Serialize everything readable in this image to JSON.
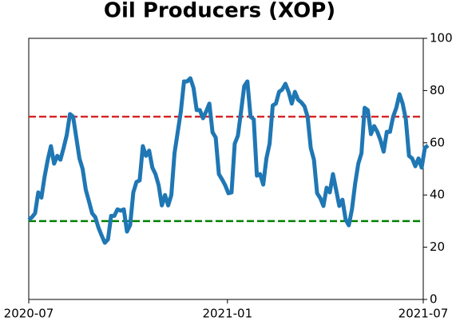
{
  "chart_data": {
    "type": "line",
    "title": "Oil Producers (XOP)",
    "series": [
      {
        "name": "XOP",
        "color": "#1f77b4",
        "values": [
          30.5,
          31.5,
          33,
          41,
          39,
          47,
          53.5,
          58.7,
          52,
          55,
          53.5,
          58,
          63,
          71,
          70,
          62,
          54,
          50,
          42,
          37.6,
          33,
          31.5,
          27.5,
          24.5,
          21.7,
          23,
          32,
          32,
          34.5,
          34,
          34.5,
          26,
          28.5,
          41,
          45,
          45.6,
          58.7,
          55,
          57,
          50.5,
          48,
          43.7,
          36,
          40,
          36,
          40,
          56,
          64,
          72,
          83.5,
          83.5,
          84.7,
          81,
          72.5,
          72.5,
          69.4,
          72,
          75,
          64,
          62,
          48,
          46,
          43.7,
          40.7,
          41,
          59.6,
          62.7,
          72,
          81.7,
          83.5,
          70,
          69,
          47.4,
          48,
          44,
          54,
          59.6,
          74.3,
          75,
          79.5,
          80.4,
          82.6,
          79.5,
          75,
          79.5,
          76.5,
          75.5,
          74,
          70,
          58,
          53.5,
          40.7,
          38.8,
          35.8,
          42.8,
          41,
          48,
          42,
          35.8,
          38.2,
          30.6,
          28.4,
          34.5,
          44.3,
          52,
          56,
          73.4,
          72.5,
          63.3,
          66.4,
          64.2,
          61,
          56.6,
          64.2,
          64.2,
          70,
          73.4,
          78.6,
          75,
          69,
          55,
          54,
          51,
          54,
          50.5,
          58,
          59
        ]
      }
    ],
    "hlines": [
      {
        "value": 70,
        "color": "#d62728"
      },
      {
        "value": 30,
        "color": "#008000"
      }
    ],
    "xlim": [
      0,
      124.5
    ],
    "xticks": [
      {
        "value": 0,
        "label": "2020-07"
      },
      {
        "value": 62.7,
        "label": "2021-01"
      },
      {
        "value": 124.5,
        "label": "2021-07"
      }
    ],
    "ylim": [
      0,
      100
    ],
    "yticks": [
      0,
      20,
      40,
      60,
      80,
      100
    ],
    "yaxis_side": "right",
    "grid": false
  }
}
